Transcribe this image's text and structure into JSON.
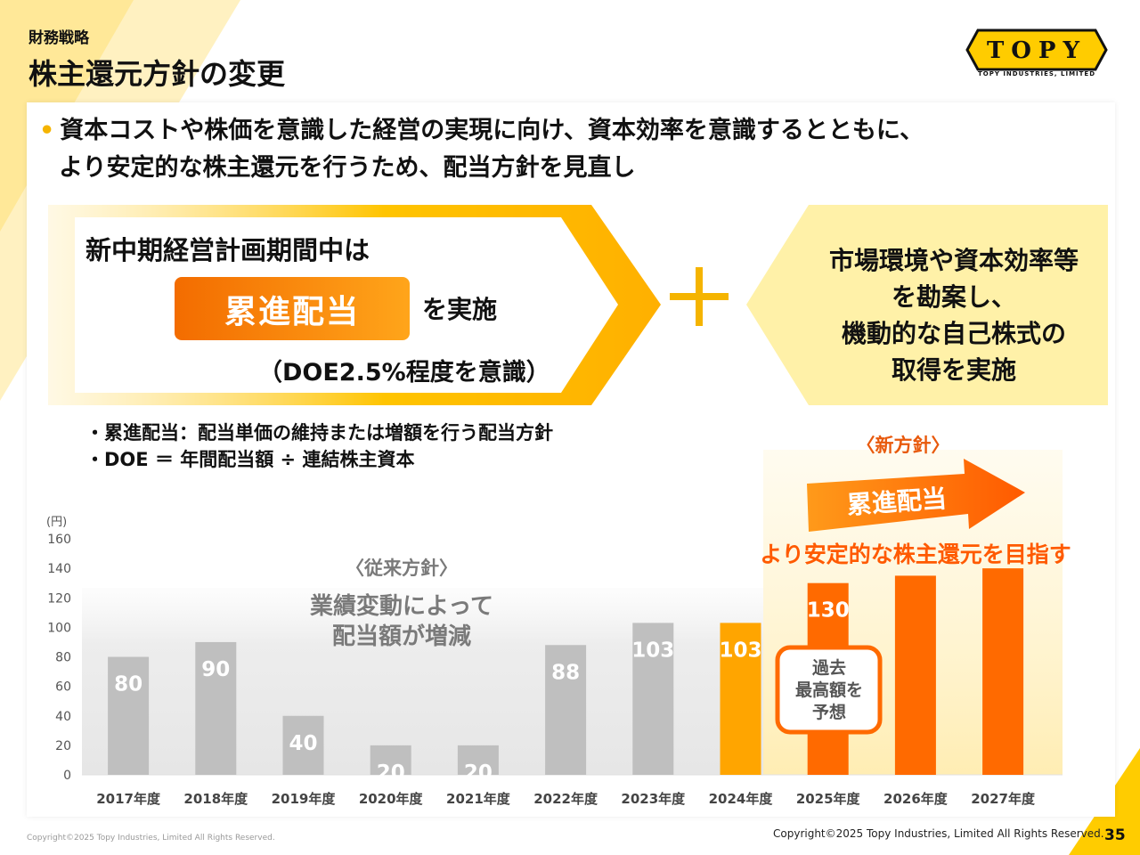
{
  "header": {
    "category": "財務戦略",
    "title": "株主還元方針の変更",
    "logo_text": "TOPY",
    "logo_caption": "TOPY INDUSTRIES, LIMITED"
  },
  "bullet": {
    "line1": "資本コストや株価を意識した経営の実現に向け、資本効率を意識するとともに、",
    "line2": "より安定的な株主還元を行うため、配当方針を見直し"
  },
  "left_box": {
    "title": "新中期経営計画期間中は",
    "highlight": "累進配当",
    "implement": "を実施",
    "doe": "（DOE2.5%程度を意識）"
  },
  "right_box": {
    "lines": [
      "市場環境や資本効率等",
      "を勘案し、",
      "機動的な自己株式の",
      "取得を実施"
    ]
  },
  "notes": [
    "・累進配当：配当単価の維持または増額を行う配当方針",
    "・DOE ＝ 年間配当額 ÷ 連結株主資本"
  ],
  "colors": {
    "accent_yellow": "#f5b400",
    "orange": "#ff6a00",
    "gray_bar": "#bfbfbf",
    "amber_bar": "#ffa500"
  },
  "chart_data": {
    "type": "bar",
    "ylabel": "(円)",
    "ylim": [
      0,
      160
    ],
    "yticks": [
      0,
      20,
      40,
      60,
      80,
      100,
      120,
      140,
      160
    ],
    "categories": [
      "2017年度",
      "2018年度",
      "2019年度",
      "2020年度",
      "2021年度",
      "2022年度",
      "2023年度",
      "2024年度",
      "2025年度",
      "2026年度",
      "2027年度"
    ],
    "values": [
      80,
      90,
      40,
      20,
      20,
      88,
      103,
      103,
      130,
      135,
      140
    ],
    "labels": [
      "80",
      "90",
      "40",
      "20",
      "20",
      "88",
      "103",
      "103",
      "130",
      "",
      ""
    ],
    "bar_colors": [
      "#bfbfbf",
      "#bfbfbf",
      "#bfbfbf",
      "#bfbfbf",
      "#bfbfbf",
      "#bfbfbf",
      "#bfbfbf",
      "#ffa500",
      "#ff6a00",
      "#ff6a00",
      "#ff6a00"
    ],
    "annotations": {
      "old_policy_title": "〈従来方針〉",
      "old_policy_lines": [
        "業績変動によって",
        "配当額が増減"
      ],
      "new_policy_title": "〈新方針〉",
      "new_policy_arrow": "累進配当",
      "new_policy_sub": "より安定的な株主還元を目指す",
      "callout_lines": [
        "過去",
        "最高額を",
        "予想"
      ]
    }
  },
  "footer": {
    "copyright_left": "Copyright©2025 Topy Industries, Limited All Rights Reserved.",
    "copyright_right": "Copyright©2025 Topy Industries, Limited All Rights Reserved.",
    "page": "35"
  }
}
